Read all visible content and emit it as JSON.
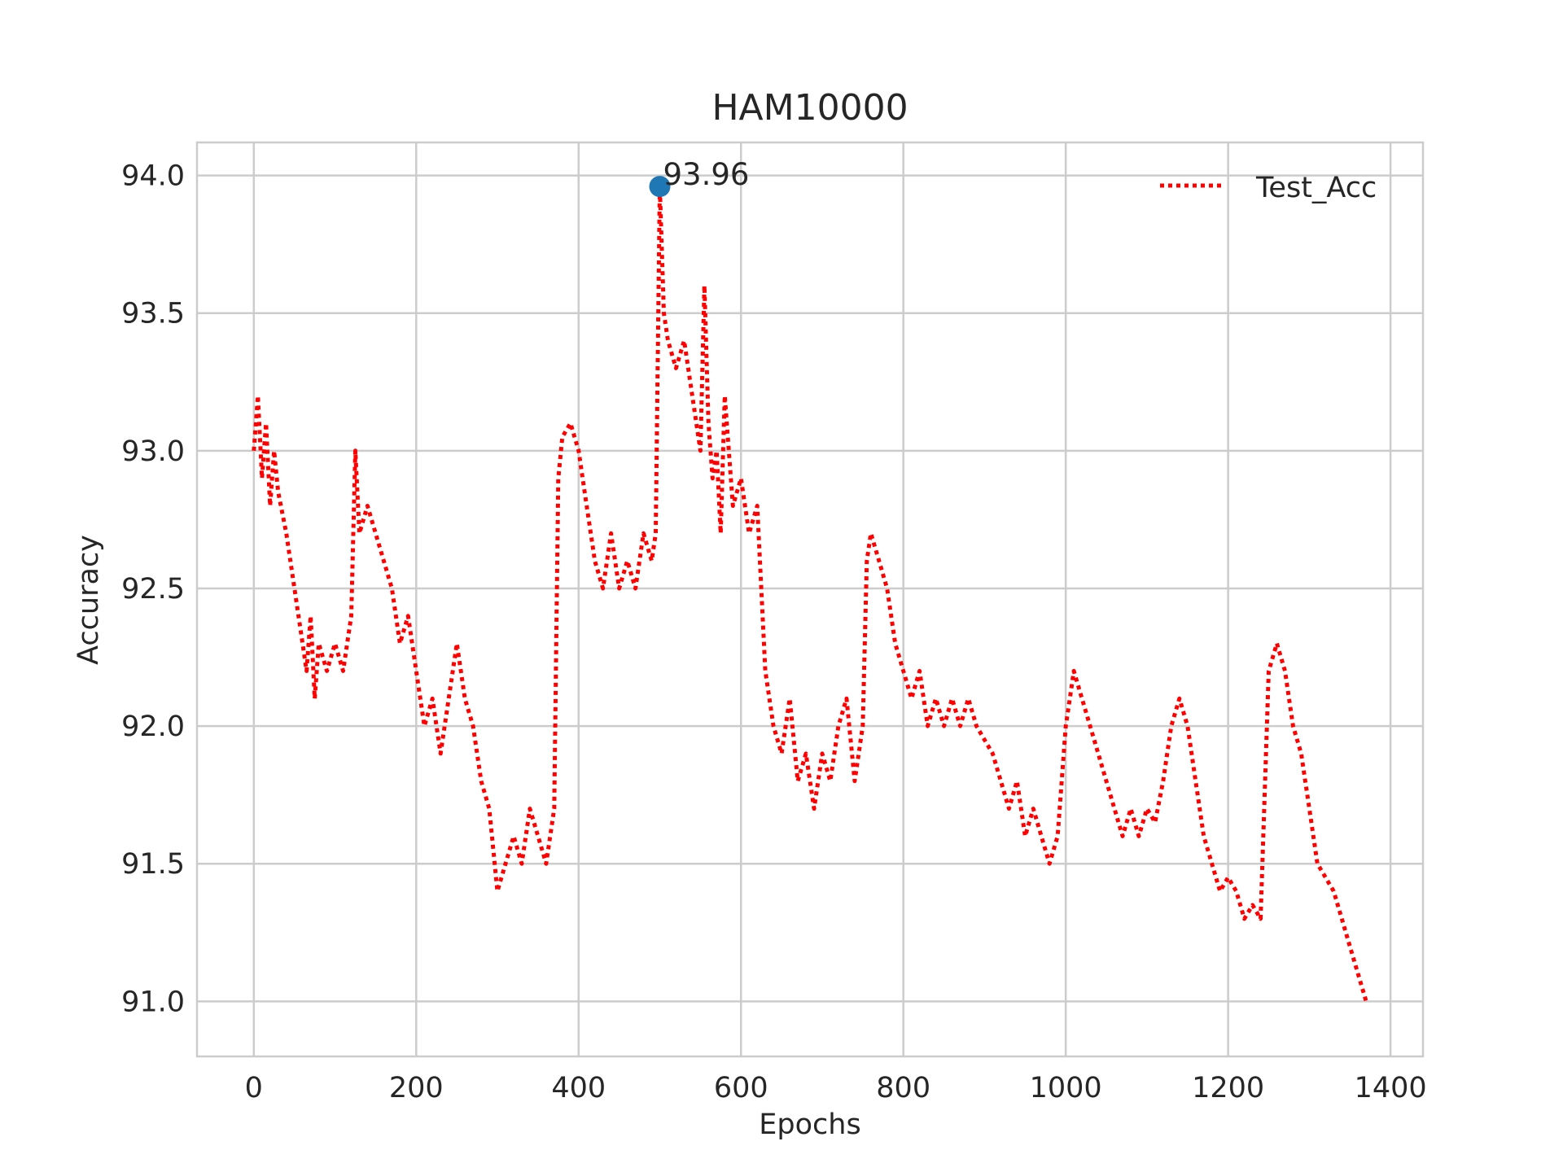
{
  "chart_data": {
    "type": "line",
    "title": "HAM10000",
    "xlabel": "Epochs",
    "ylabel": "Accuracy",
    "xlim": [
      -70,
      1440
    ],
    "ylim": [
      90.8,
      94.12
    ],
    "xticks": [
      0,
      200,
      400,
      600,
      800,
      1000,
      1200,
      1400
    ],
    "yticks": [
      91.0,
      91.5,
      92.0,
      92.5,
      93.0,
      93.5,
      94.0
    ],
    "xtick_labels": [
      "0",
      "200",
      "400",
      "600",
      "800",
      "1000",
      "1200",
      "1400"
    ],
    "ytick_labels": [
      "91.0",
      "91.5",
      "92.0",
      "92.5",
      "93.0",
      "93.5",
      "94.0"
    ],
    "grid": true,
    "legend_position": "top-right",
    "colors": {
      "series": "#ff0000",
      "marker": "#1f77b4",
      "grid": "#cccccc",
      "frame": "#cccccc",
      "text": "#262626"
    },
    "series": [
      {
        "name": "Test_Acc",
        "style": "dotted",
        "points": [
          [
            0,
            93.0
          ],
          [
            5,
            93.2
          ],
          [
            10,
            92.9
          ],
          [
            15,
            93.1
          ],
          [
            20,
            92.8
          ],
          [
            25,
            93.0
          ],
          [
            30,
            92.85
          ],
          [
            40,
            92.7
          ],
          [
            45,
            92.6
          ],
          [
            50,
            92.5
          ],
          [
            55,
            92.4
          ],
          [
            60,
            92.3
          ],
          [
            65,
            92.2
          ],
          [
            70,
            92.4
          ],
          [
            75,
            92.1
          ],
          [
            80,
            92.3
          ],
          [
            90,
            92.2
          ],
          [
            100,
            92.3
          ],
          [
            110,
            92.2
          ],
          [
            120,
            92.4
          ],
          [
            125,
            93.0
          ],
          [
            130,
            92.7
          ],
          [
            140,
            92.8
          ],
          [
            150,
            92.7
          ],
          [
            160,
            92.6
          ],
          [
            170,
            92.5
          ],
          [
            180,
            92.3
          ],
          [
            190,
            92.4
          ],
          [
            200,
            92.2
          ],
          [
            210,
            92.0
          ],
          [
            220,
            92.1
          ],
          [
            230,
            91.9
          ],
          [
            240,
            92.1
          ],
          [
            250,
            92.3
          ],
          [
            260,
            92.1
          ],
          [
            270,
            92.0
          ],
          [
            280,
            91.8
          ],
          [
            290,
            91.7
          ],
          [
            300,
            91.4
          ],
          [
            310,
            91.5
          ],
          [
            320,
            91.6
          ],
          [
            330,
            91.5
          ],
          [
            340,
            91.7
          ],
          [
            350,
            91.6
          ],
          [
            360,
            91.5
          ],
          [
            370,
            91.7
          ],
          [
            375,
            92.9
          ],
          [
            380,
            93.05
          ],
          [
            390,
            93.1
          ],
          [
            400,
            93.0
          ],
          [
            405,
            92.9
          ],
          [
            410,
            92.8
          ],
          [
            420,
            92.6
          ],
          [
            430,
            92.5
          ],
          [
            440,
            92.7
          ],
          [
            450,
            92.5
          ],
          [
            460,
            92.6
          ],
          [
            470,
            92.5
          ],
          [
            480,
            92.7
          ],
          [
            490,
            92.6
          ],
          [
            495,
            92.7
          ],
          [
            500,
            93.96
          ],
          [
            505,
            93.5
          ],
          [
            510,
            93.4
          ],
          [
            520,
            93.3
          ],
          [
            530,
            93.4
          ],
          [
            540,
            93.2
          ],
          [
            550,
            93.0
          ],
          [
            555,
            93.6
          ],
          [
            560,
            93.1
          ],
          [
            565,
            92.9
          ],
          [
            570,
            93.0
          ],
          [
            575,
            92.7
          ],
          [
            580,
            93.2
          ],
          [
            590,
            92.8
          ],
          [
            600,
            92.9
          ],
          [
            610,
            92.7
          ],
          [
            620,
            92.8
          ],
          [
            630,
            92.2
          ],
          [
            640,
            92.0
          ],
          [
            650,
            91.9
          ],
          [
            660,
            92.1
          ],
          [
            670,
            91.8
          ],
          [
            680,
            91.9
          ],
          [
            690,
            91.7
          ],
          [
            700,
            91.9
          ],
          [
            710,
            91.8
          ],
          [
            720,
            92.0
          ],
          [
            730,
            92.1
          ],
          [
            740,
            91.8
          ],
          [
            750,
            92.0
          ],
          [
            755,
            92.6
          ],
          [
            760,
            92.7
          ],
          [
            770,
            92.6
          ],
          [
            780,
            92.5
          ],
          [
            790,
            92.3
          ],
          [
            800,
            92.2
          ],
          [
            810,
            92.1
          ],
          [
            820,
            92.2
          ],
          [
            830,
            92.0
          ],
          [
            840,
            92.1
          ],
          [
            850,
            92.0
          ],
          [
            860,
            92.1
          ],
          [
            870,
            92.0
          ],
          [
            880,
            92.1
          ],
          [
            890,
            92.0
          ],
          [
            900,
            91.95
          ],
          [
            910,
            91.9
          ],
          [
            920,
            91.8
          ],
          [
            930,
            91.7
          ],
          [
            940,
            91.8
          ],
          [
            950,
            91.6
          ],
          [
            960,
            91.7
          ],
          [
            970,
            91.6
          ],
          [
            980,
            91.5
          ],
          [
            990,
            91.6
          ],
          [
            1000,
            92.0
          ],
          [
            1005,
            92.1
          ],
          [
            1010,
            92.2
          ],
          [
            1020,
            92.1
          ],
          [
            1030,
            92.0
          ],
          [
            1040,
            91.9
          ],
          [
            1050,
            91.8
          ],
          [
            1060,
            91.7
          ],
          [
            1070,
            91.6
          ],
          [
            1080,
            91.7
          ],
          [
            1090,
            91.6
          ],
          [
            1100,
            91.7
          ],
          [
            1110,
            91.65
          ],
          [
            1120,
            91.8
          ],
          [
            1130,
            92.0
          ],
          [
            1140,
            92.1
          ],
          [
            1150,
            92.0
          ],
          [
            1155,
            91.9
          ],
          [
            1160,
            91.8
          ],
          [
            1170,
            91.6
          ],
          [
            1180,
            91.5
          ],
          [
            1190,
            91.4
          ],
          [
            1200,
            91.45
          ],
          [
            1210,
            91.4
          ],
          [
            1220,
            91.3
          ],
          [
            1230,
            91.35
          ],
          [
            1240,
            91.3
          ],
          [
            1250,
            92.2
          ],
          [
            1260,
            92.3
          ],
          [
            1270,
            92.2
          ],
          [
            1280,
            92.0
          ],
          [
            1290,
            91.9
          ],
          [
            1300,
            91.7
          ],
          [
            1310,
            91.5
          ],
          [
            1320,
            91.45
          ],
          [
            1330,
            91.4
          ],
          [
            1340,
            91.3
          ],
          [
            1350,
            91.2
          ],
          [
            1360,
            91.1
          ],
          [
            1370,
            91.0
          ]
        ]
      }
    ],
    "highlight": {
      "x": 500,
      "y": 93.96,
      "label": "93.96"
    }
  }
}
